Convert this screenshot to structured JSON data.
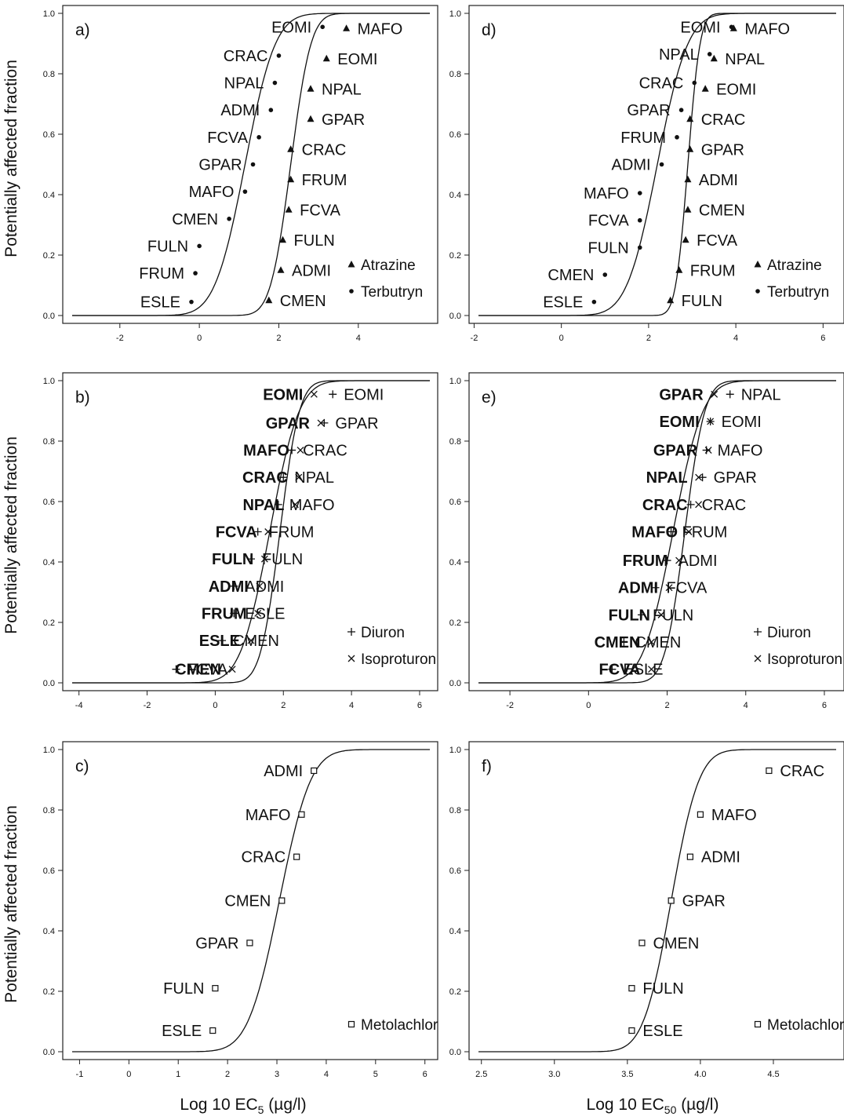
{
  "axes": {
    "ylabel": "Potentially affected fraction",
    "xlabel_left": {
      "prefix": "Log 10 EC",
      "sub": "5",
      "suffix": " (µg/l)"
    },
    "xlabel_right": {
      "prefix": "Log 10 EC",
      "sub": "50",
      "suffix": " (µg/l)"
    }
  },
  "chart_data": [
    {
      "panel": "a)",
      "type": "scatter",
      "xlim": [
        -3.2,
        5.8
      ],
      "ylim": [
        0,
        1
      ],
      "xticks": [
        -2,
        0,
        2,
        4
      ],
      "yticks": [
        0.0,
        0.2,
        0.4,
        0.6,
        0.8,
        1.0
      ],
      "legend": "bottom-right",
      "series": [
        {
          "name": "Atrazine",
          "marker": "triangle",
          "fit": {
            "mu": 2.3,
            "s": 0.4
          },
          "points": [
            {
              "label": "CMEN",
              "x": 1.75,
              "y": 0.05,
              "bold": false
            },
            {
              "label": "ADMI",
              "x": 2.05,
              "y": 0.15,
              "bold": false
            },
            {
              "label": "FULN",
              "x": 2.1,
              "y": 0.25,
              "bold": false
            },
            {
              "label": "FCVA",
              "x": 2.25,
              "y": 0.35,
              "bold": false
            },
            {
              "label": "FRUM",
              "x": 2.3,
              "y": 0.45,
              "bold": false
            },
            {
              "label": "CRAC",
              "x": 2.3,
              "y": 0.55,
              "bold": false
            },
            {
              "label": "GPAR",
              "x": 2.8,
              "y": 0.65,
              "bold": false
            },
            {
              "label": "NPAL",
              "x": 2.8,
              "y": 0.75,
              "bold": false
            },
            {
              "label": "EOMI",
              "x": 3.2,
              "y": 0.85,
              "bold": false
            },
            {
              "label": "MAFO",
              "x": 3.7,
              "y": 0.95,
              "bold": false
            }
          ]
        },
        {
          "name": "Terbutryn",
          "marker": "dot",
          "fit": {
            "mu": 1.15,
            "s": 0.6
          },
          "points": [
            {
              "label": "ESLE",
              "x": -0.2,
              "y": 0.045,
              "bold": false
            },
            {
              "label": "FRUM",
              "x": -0.1,
              "y": 0.14,
              "bold": false
            },
            {
              "label": "FULN",
              "x": 0.0,
              "y": 0.23,
              "bold": false
            },
            {
              "label": "CMEN",
              "x": 0.75,
              "y": 0.32,
              "bold": false
            },
            {
              "label": "MAFO",
              "x": 1.15,
              "y": 0.41,
              "bold": false
            },
            {
              "label": "GPAR",
              "x": 1.35,
              "y": 0.5,
              "bold": false
            },
            {
              "label": "FCVA",
              "x": 1.5,
              "y": 0.59,
              "bold": false
            },
            {
              "label": "ADMI",
              "x": 1.8,
              "y": 0.68,
              "bold": false
            },
            {
              "label": "NPAL",
              "x": 1.9,
              "y": 0.77,
              "bold": false
            },
            {
              "label": "CRAC",
              "x": 2.0,
              "y": 0.86,
              "bold": false
            },
            {
              "label": "EOMI",
              "x": 3.1,
              "y": 0.955,
              "bold": false
            }
          ]
        }
      ]
    },
    {
      "panel": "b)",
      "type": "scatter",
      "xlim": [
        -4.2,
        6.3
      ],
      "ylim": [
        0,
        1
      ],
      "xticks": [
        -4,
        -2,
        0,
        2,
        4,
        6
      ],
      "yticks": [
        0.0,
        0.2,
        0.4,
        0.6,
        0.8,
        1.0
      ],
      "legend": "bottom-right",
      "series": [
        {
          "name": "Diuron",
          "marker": "plus",
          "fit": {
            "mu": 1.6,
            "s": 0.68
          },
          "points": [
            {
              "label": "FCVA",
              "x": -1.15,
              "y": 0.045,
              "bold": false
            },
            {
              "label": "CMEN",
              "x": 0.2,
              "y": 0.14,
              "bold": false
            },
            {
              "label": "ESLE",
              "x": 0.55,
              "y": 0.23,
              "bold": false
            },
            {
              "label": "ADMI",
              "x": 0.55,
              "y": 0.32,
              "bold": false
            },
            {
              "label": "FULN",
              "x": 1.05,
              "y": 0.41,
              "bold": false
            },
            {
              "label": "FRUM",
              "x": 1.25,
              "y": 0.5,
              "bold": false
            },
            {
              "label": "MAFO",
              "x": 1.85,
              "y": 0.59,
              "bold": false
            },
            {
              "label": "NPAL",
              "x": 2.0,
              "y": 0.68,
              "bold": false
            },
            {
              "label": "CRAC",
              "x": 2.25,
              "y": 0.77,
              "bold": false
            },
            {
              "label": "GPAR",
              "x": 3.2,
              "y": 0.86,
              "bold": false
            },
            {
              "label": "EOMI",
              "x": 3.45,
              "y": 0.955,
              "bold": false
            }
          ]
        },
        {
          "name": "Isoproturon",
          "marker": "cross",
          "fit": {
            "mu": 1.9,
            "s": 0.45
          },
          "points": [
            {
              "label": "CMEN",
              "x": 0.5,
              "y": 0.045,
              "bold": true
            },
            {
              "label": "ESLE",
              "x": 1.05,
              "y": 0.14,
              "bold": true
            },
            {
              "label": "FRUM",
              "x": 1.25,
              "y": 0.23,
              "bold": true
            },
            {
              "label": "ADMI",
              "x": 1.3,
              "y": 0.32,
              "bold": true
            },
            {
              "label": "FULN",
              "x": 1.45,
              "y": 0.41,
              "bold": true
            },
            {
              "label": "FCVA",
              "x": 1.55,
              "y": 0.5,
              "bold": true
            },
            {
              "label": "NPAL",
              "x": 2.35,
              "y": 0.59,
              "bold": true
            },
            {
              "label": "CRAC",
              "x": 2.45,
              "y": 0.68,
              "bold": true
            },
            {
              "label": "MAFO",
              "x": 2.5,
              "y": 0.77,
              "bold": true
            },
            {
              "label": "GPAR",
              "x": 3.1,
              "y": 0.86,
              "bold": true
            },
            {
              "label": "EOMI",
              "x": 2.9,
              "y": 0.955,
              "bold": true
            }
          ]
        }
      ]
    },
    {
      "panel": "c)",
      "type": "scatter",
      "xlim": [
        -1.15,
        6.1
      ],
      "ylim": [
        0,
        1
      ],
      "xticks": [
        -1,
        0,
        1,
        2,
        3,
        4,
        5,
        6
      ],
      "yticks": [
        0.0,
        0.2,
        0.4,
        0.6,
        0.8,
        1.0
      ],
      "legend": "bottom-right",
      "series": [
        {
          "name": "Metolachlor",
          "marker": "square",
          "fit": {
            "mu": 3.05,
            "s": 0.5
          },
          "points": [
            {
              "label": "ESLE",
              "x": 1.7,
              "y": 0.07,
              "bold": false
            },
            {
              "label": "FULN",
              "x": 1.75,
              "y": 0.21,
              "bold": false
            },
            {
              "label": "GPAR",
              "x": 2.45,
              "y": 0.36,
              "bold": false
            },
            {
              "label": "CMEN",
              "x": 3.1,
              "y": 0.5,
              "bold": false
            },
            {
              "label": "CRAC",
              "x": 3.4,
              "y": 0.645,
              "bold": false
            },
            {
              "label": "MAFO",
              "x": 3.5,
              "y": 0.785,
              "bold": false
            },
            {
              "label": "ADMI",
              "x": 3.75,
              "y": 0.93,
              "bold": false
            }
          ]
        }
      ]
    },
    {
      "panel": "d)",
      "type": "scatter",
      "xlim": [
        -1.9,
        6.3
      ],
      "ylim": [
        0,
        1
      ],
      "xticks": [
        -2,
        0,
        2,
        4,
        6
      ],
      "yticks": [
        0.0,
        0.2,
        0.4,
        0.6,
        0.8,
        1.0
      ],
      "legend": "bottom-right",
      "series": [
        {
          "name": "Atrazine",
          "marker": "triangle",
          "fit": {
            "mu": 2.9,
            "s": 0.22
          },
          "points": [
            {
              "label": "FULN",
              "x": 2.5,
              "y": 0.05,
              "bold": false
            },
            {
              "label": "FRUM",
              "x": 2.7,
              "y": 0.15,
              "bold": false
            },
            {
              "label": "FCVA",
              "x": 2.85,
              "y": 0.25,
              "bold": false
            },
            {
              "label": "CMEN",
              "x": 2.9,
              "y": 0.35,
              "bold": false
            },
            {
              "label": "ADMI",
              "x": 2.9,
              "y": 0.45,
              "bold": false
            },
            {
              "label": "GPAR",
              "x": 2.95,
              "y": 0.55,
              "bold": false
            },
            {
              "label": "CRAC",
              "x": 2.95,
              "y": 0.65,
              "bold": false
            },
            {
              "label": "EOMI",
              "x": 3.3,
              "y": 0.75,
              "bold": false
            },
            {
              "label": "NPAL",
              "x": 3.5,
              "y": 0.85,
              "bold": false
            },
            {
              "label": "MAFO",
              "x": 3.95,
              "y": 0.95,
              "bold": false
            }
          ]
        },
        {
          "name": "Terbutryn",
          "marker": "dot",
          "fit": {
            "mu": 2.2,
            "s": 0.55
          },
          "points": [
            {
              "label": "ESLE",
              "x": 0.75,
              "y": 0.045,
              "bold": false
            },
            {
              "label": "CMEN",
              "x": 1.0,
              "y": 0.135,
              "bold": false
            },
            {
              "label": "FULN",
              "x": 1.8,
              "y": 0.225,
              "bold": false
            },
            {
              "label": "FCVA",
              "x": 1.8,
              "y": 0.315,
              "bold": false
            },
            {
              "label": "MAFO",
              "x": 1.8,
              "y": 0.405,
              "bold": false
            },
            {
              "label": "ADMI",
              "x": 2.3,
              "y": 0.5,
              "bold": false
            },
            {
              "label": "FRUM",
              "x": 2.65,
              "y": 0.59,
              "bold": false
            },
            {
              "label": "GPAR",
              "x": 2.75,
              "y": 0.68,
              "bold": false
            },
            {
              "label": "CRAC",
              "x": 3.05,
              "y": 0.77,
              "bold": false
            },
            {
              "label": "NPAL",
              "x": 3.4,
              "y": 0.865,
              "bold": false
            },
            {
              "label": "EOMI",
              "x": 3.9,
              "y": 0.955,
              "bold": false
            }
          ]
        }
      ]
    },
    {
      "panel": "e)",
      "type": "scatter",
      "xlim": [
        -2.8,
        6.3
      ],
      "ylim": [
        0,
        1
      ],
      "xticks": [
        -2,
        0,
        2,
        4,
        6
      ],
      "yticks": [
        0.0,
        0.2,
        0.4,
        0.6,
        0.8,
        1.0
      ],
      "legend": "bottom-right",
      "series": [
        {
          "name": "Diuron",
          "marker": "plus",
          "fit": {
            "mu": 2.15,
            "s": 0.6
          },
          "points": [
            {
              "label": "ESLE",
              "x": 0.6,
              "y": 0.045,
              "bold": false
            },
            {
              "label": "CMEN",
              "x": 0.9,
              "y": 0.135,
              "bold": false
            },
            {
              "label": "FULN",
              "x": 1.35,
              "y": 0.225,
              "bold": false
            },
            {
              "label": "FCVA",
              "x": 1.7,
              "y": 0.315,
              "bold": false
            },
            {
              "label": "ADMI",
              "x": 2.0,
              "y": 0.405,
              "bold": false
            },
            {
              "label": "FRUM",
              "x": 2.1,
              "y": 0.5,
              "bold": false
            },
            {
              "label": "CRAC",
              "x": 2.6,
              "y": 0.59,
              "bold": false
            },
            {
              "label": "GPAR",
              "x": 2.9,
              "y": 0.68,
              "bold": false
            },
            {
              "label": "MAFO",
              "x": 3.0,
              "y": 0.77,
              "bold": false
            },
            {
              "label": "EOMI",
              "x": 3.1,
              "y": 0.865,
              "bold": false
            },
            {
              "label": "NPAL",
              "x": 3.6,
              "y": 0.955,
              "bold": false
            }
          ]
        },
        {
          "name": "Isoproturon",
          "marker": "cross",
          "fit": {
            "mu": 2.45,
            "s": 0.4
          },
          "points": [
            {
              "label": "FCVA",
              "x": 1.6,
              "y": 0.045,
              "bold": true
            },
            {
              "label": "CMEN",
              "x": 1.6,
              "y": 0.135,
              "bold": true
            },
            {
              "label": "FULN",
              "x": 1.85,
              "y": 0.225,
              "bold": true
            },
            {
              "label": "ADMI",
              "x": 2.05,
              "y": 0.315,
              "bold": true
            },
            {
              "label": "FRUM",
              "x": 2.3,
              "y": 0.405,
              "bold": true
            },
            {
              "label": "MAFO",
              "x": 2.55,
              "y": 0.5,
              "bold": true
            },
            {
              "label": "CRAC",
              "x": 2.8,
              "y": 0.59,
              "bold": true
            },
            {
              "label": "NPAL",
              "x": 2.8,
              "y": 0.68,
              "bold": true
            },
            {
              "label": "GPAR",
              "x": 3.05,
              "y": 0.77,
              "bold": true
            },
            {
              "label": "EOMI",
              "x": 3.1,
              "y": 0.865,
              "bold": true
            },
            {
              "label": "GPAR",
              "x": 3.2,
              "y": 0.955,
              "bold": true
            }
          ]
        }
      ]
    },
    {
      "panel": "f)",
      "type": "scatter",
      "xlim": [
        2.48,
        4.93
      ],
      "ylim": [
        0,
        1
      ],
      "xticks": [
        2.5,
        3.0,
        3.5,
        4.0,
        4.5
      ],
      "yticks": [
        0.0,
        0.2,
        0.4,
        0.6,
        0.8,
        1.0
      ],
      "legend": "bottom-right",
      "series": [
        {
          "name": "Metolachlor",
          "marker": "square",
          "fit": {
            "mu": 3.8,
            "s": 0.15
          },
          "points": [
            {
              "label": "ESLE",
              "x": 3.53,
              "y": 0.07,
              "bold": false
            },
            {
              "label": "FULN",
              "x": 3.53,
              "y": 0.21,
              "bold": false
            },
            {
              "label": "CMEN",
              "x": 3.6,
              "y": 0.36,
              "bold": false
            },
            {
              "label": "GPAR",
              "x": 3.8,
              "y": 0.5,
              "bold": false
            },
            {
              "label": "ADMI",
              "x": 3.93,
              "y": 0.645,
              "bold": false
            },
            {
              "label": "MAFO",
              "x": 4.0,
              "y": 0.785,
              "bold": false
            },
            {
              "label": "CRAC",
              "x": 4.47,
              "y": 0.93,
              "bold": false
            }
          ]
        }
      ]
    }
  ]
}
